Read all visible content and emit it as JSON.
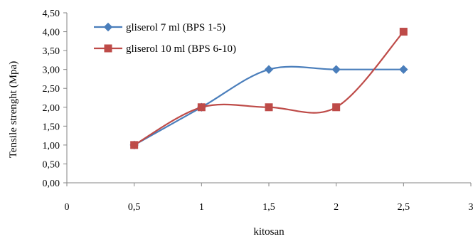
{
  "chart_data": {
    "type": "line",
    "xlabel": "kitosan",
    "ylabel": "Tensile strenght (Mpa)",
    "xlim": [
      0,
      3
    ],
    "ylim": [
      0,
      4.5
    ],
    "x_ticks": [
      0,
      0.5,
      1,
      1.5,
      2,
      2.5,
      3
    ],
    "x_tick_labels": [
      "0",
      "0,5",
      "1",
      "1,5",
      "2",
      "2,5",
      "3"
    ],
    "y_ticks": [
      0,
      0.5,
      1,
      1.5,
      2,
      2.5,
      3,
      3.5,
      4,
      4.5
    ],
    "y_tick_labels": [
      "0,00",
      "0,50",
      "1,00",
      "1,50",
      "2,00",
      "2,50",
      "3,00",
      "3,50",
      "4,00",
      "4,50"
    ],
    "grid": false,
    "smooth": true,
    "legend_position": "top-left",
    "series": [
      {
        "name": "gliserol 7 ml (BPS 1-5)",
        "color": "#4a7ebb",
        "marker": "diamond",
        "x": [
          0.5,
          1,
          1.5,
          2,
          2.5
        ],
        "y": [
          1,
          2,
          3,
          3,
          3
        ]
      },
      {
        "name": "gliserol 10 ml (BPS 6-10)",
        "color": "#be4b48",
        "marker": "square",
        "x": [
          0.5,
          1,
          1.5,
          2,
          2.5
        ],
        "y": [
          1,
          2,
          2,
          2,
          4
        ]
      }
    ]
  }
}
